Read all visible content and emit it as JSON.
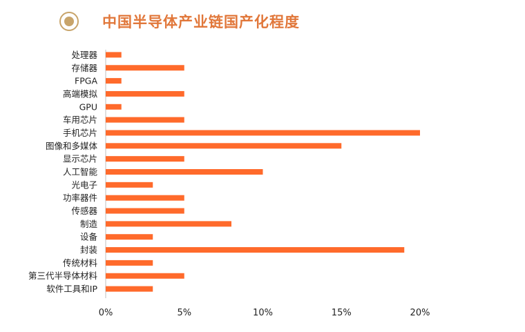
{
  "header": {
    "title": "中国半导体产业链国产化程度",
    "icon": "target-circle-icon"
  },
  "colors": {
    "bar": "#ff6a2b",
    "title": "#e1773a",
    "icon": "#c8a46a",
    "axis": "#bfbfbf",
    "text": "#222222"
  },
  "chart_data": {
    "type": "bar",
    "orientation": "horizontal",
    "title": "中国半导体产业链国产化程度",
    "categories": [
      "处理器",
      "存储器",
      "FPGA",
      "高端模拟",
      "GPU",
      "车用芯片",
      "手机芯片",
      "图像和多媒体",
      "显示芯片",
      "人工智能",
      "光电子",
      "功率器件",
      "传感器",
      "制造",
      "设备",
      "封装",
      "传统材料",
      "第三代半导体材料",
      "软件工具和IP"
    ],
    "values": [
      1,
      5,
      1,
      5,
      1,
      5,
      20,
      15,
      5,
      10,
      3,
      5,
      5,
      8,
      3,
      19,
      3,
      5,
      3
    ],
    "unit": "%",
    "xlim": [
      0,
      20
    ],
    "xticks": [
      0,
      5,
      10,
      15,
      20
    ],
    "xtick_labels": [
      "0%",
      "5%",
      "10%",
      "15%",
      "20%"
    ],
    "grid": false,
    "legend": "none"
  }
}
